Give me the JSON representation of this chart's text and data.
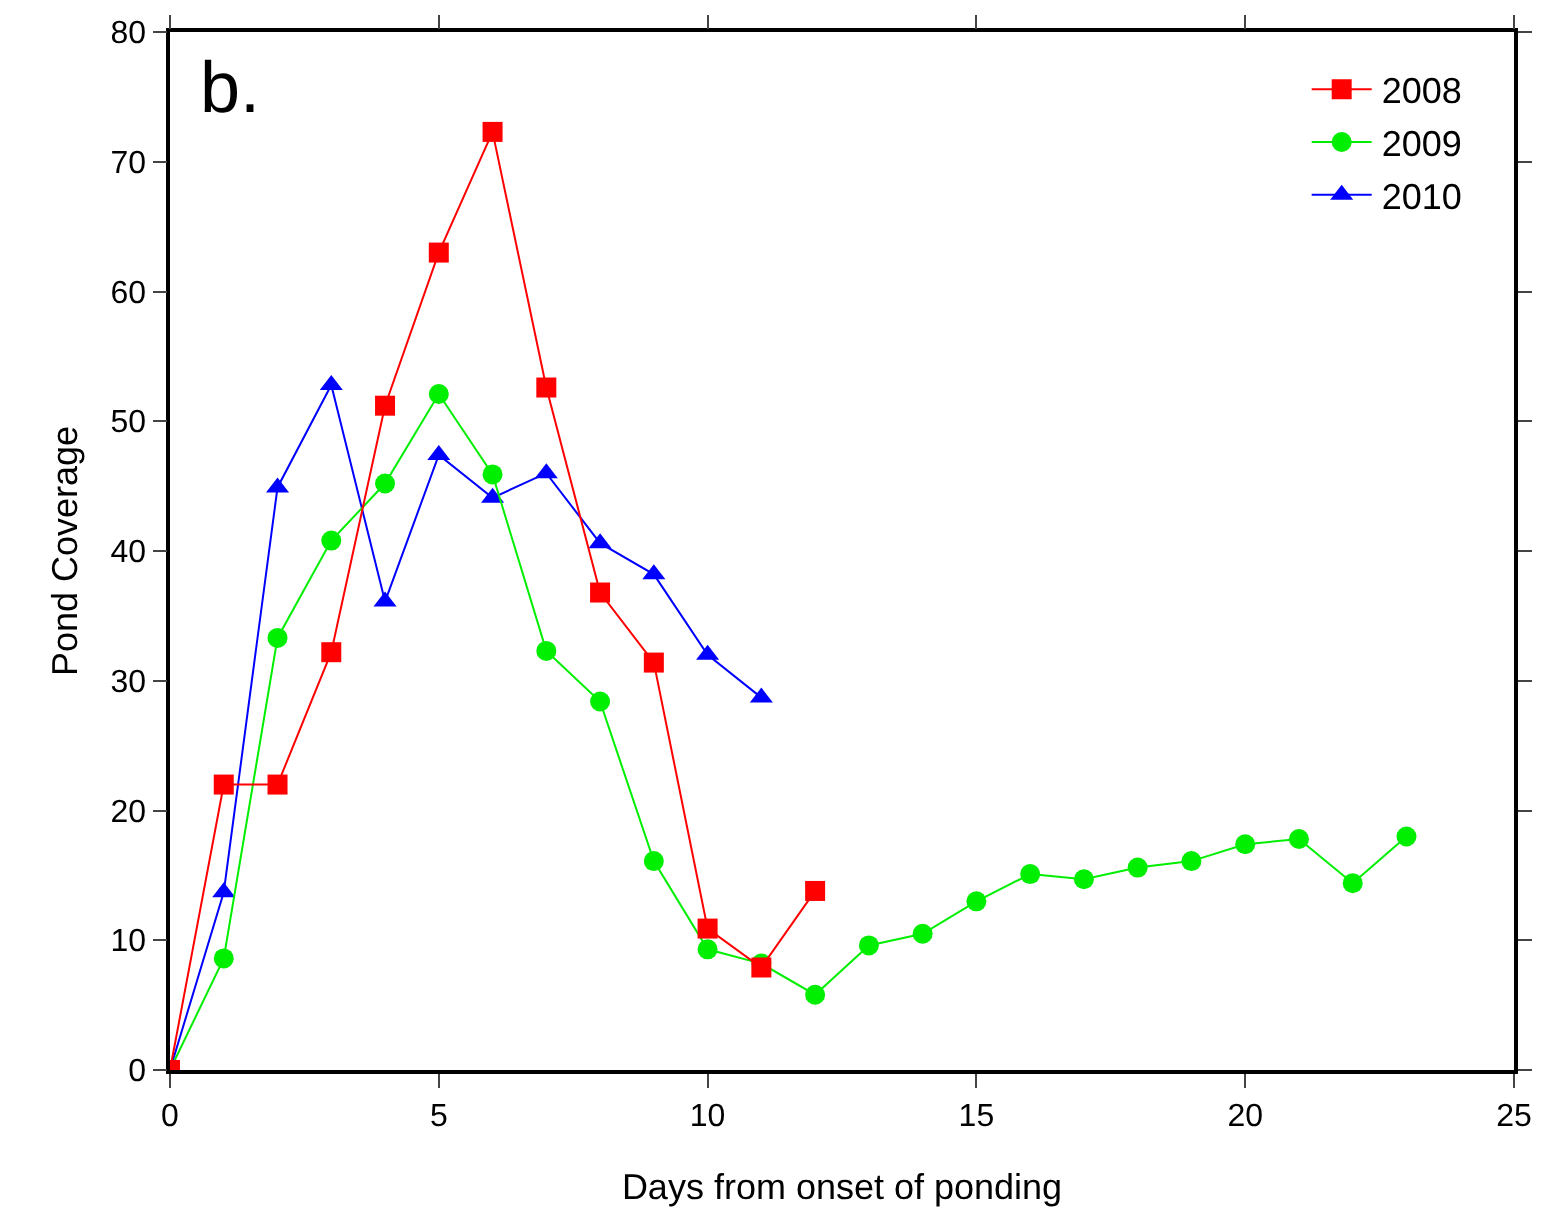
{
  "chart_data": {
    "type": "line",
    "xlabel": "Days from onset of ponding",
    "ylabel": "Pond Coverage",
    "annotations": [
      "b."
    ],
    "xlim": [
      0,
      25
    ],
    "xticks": [
      0,
      5,
      10,
      15,
      20,
      25
    ],
    "ylim": [
      0,
      80
    ],
    "yticks": [
      0,
      10,
      20,
      30,
      40,
      50,
      60,
      70,
      80
    ],
    "grid": false,
    "legend": "top right",
    "series": [
      {
        "name": "2008",
        "color": "#ff0000",
        "marker": "square",
        "x": [
          0,
          1,
          2,
          3,
          4,
          5,
          6,
          7,
          8,
          9,
          10,
          11,
          12
        ],
        "values": [
          0,
          22,
          22,
          32.2,
          51.2,
          63,
          72.3,
          52.6,
          36.8,
          31.4,
          10.9,
          7.9,
          13.8
        ]
      },
      {
        "name": "2009",
        "color": "#00ee00",
        "marker": "circle",
        "x": [
          0,
          1,
          2,
          3,
          4,
          5,
          6,
          7,
          8,
          9,
          10,
          11,
          12,
          13,
          14,
          15,
          16,
          17,
          18,
          19,
          20,
          21,
          22,
          23
        ],
        "values": [
          0,
          8.6,
          33.3,
          40.8,
          45.2,
          52.1,
          45.9,
          32.3,
          28.4,
          16.1,
          9.3,
          8.2,
          5.8,
          9.6,
          10.5,
          13,
          15.1,
          14.7,
          15.6,
          16.1,
          17.4,
          17.8,
          14.4,
          18
        ]
      },
      {
        "name": "2010",
        "color": "#0000ff",
        "marker": "triangle",
        "x": [
          0,
          1,
          2,
          3,
          4,
          5,
          6,
          7,
          8,
          9,
          10,
          11
        ],
        "values": [
          0,
          13.7,
          44.9,
          52.8,
          36.1,
          47.4,
          44.1,
          46,
          40.6,
          38.2,
          32,
          28.7
        ]
      }
    ]
  }
}
